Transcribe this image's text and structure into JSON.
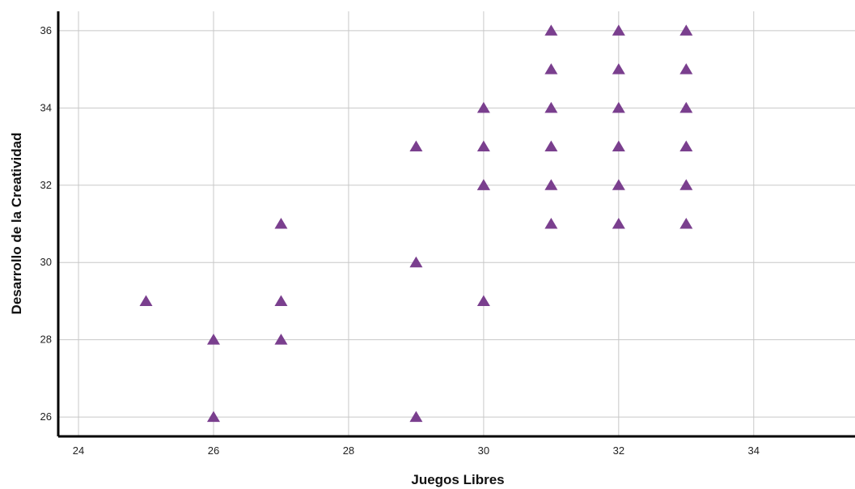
{
  "chart_data": {
    "type": "scatter",
    "title": "",
    "xlabel": "Juegos Libres",
    "ylabel": "Desarrollo de la Creatividad",
    "xlim": [
      23.7,
      35.5
    ],
    "ylim": [
      25.5,
      36.5
    ],
    "x_ticks": [
      "24",
      "26",
      "28",
      "30",
      "32",
      "34"
    ],
    "y_ticks": [
      "26",
      "28",
      "30",
      "32",
      "34",
      "36"
    ],
    "grid": true,
    "marker": "triangle",
    "colors": {
      "marker": "#7a3f8e",
      "grid": "#c8c8c8",
      "axis": "#000000"
    },
    "series": [
      {
        "x": [
          25,
          26,
          26,
          27,
          27,
          27,
          29,
          29,
          29,
          30,
          30,
          30,
          30,
          30,
          31,
          31,
          31,
          31,
          31,
          31,
          32,
          32,
          32,
          32,
          32,
          32,
          33,
          33,
          33,
          33,
          33,
          33
        ],
        "y": [
          29,
          28,
          26,
          31,
          29,
          28,
          33,
          30,
          26,
          34,
          33,
          32,
          29,
          32,
          36,
          35,
          34,
          33,
          32,
          31,
          36,
          35,
          34,
          33,
          32,
          31,
          36,
          35,
          34,
          33,
          32,
          31
        ]
      }
    ]
  }
}
